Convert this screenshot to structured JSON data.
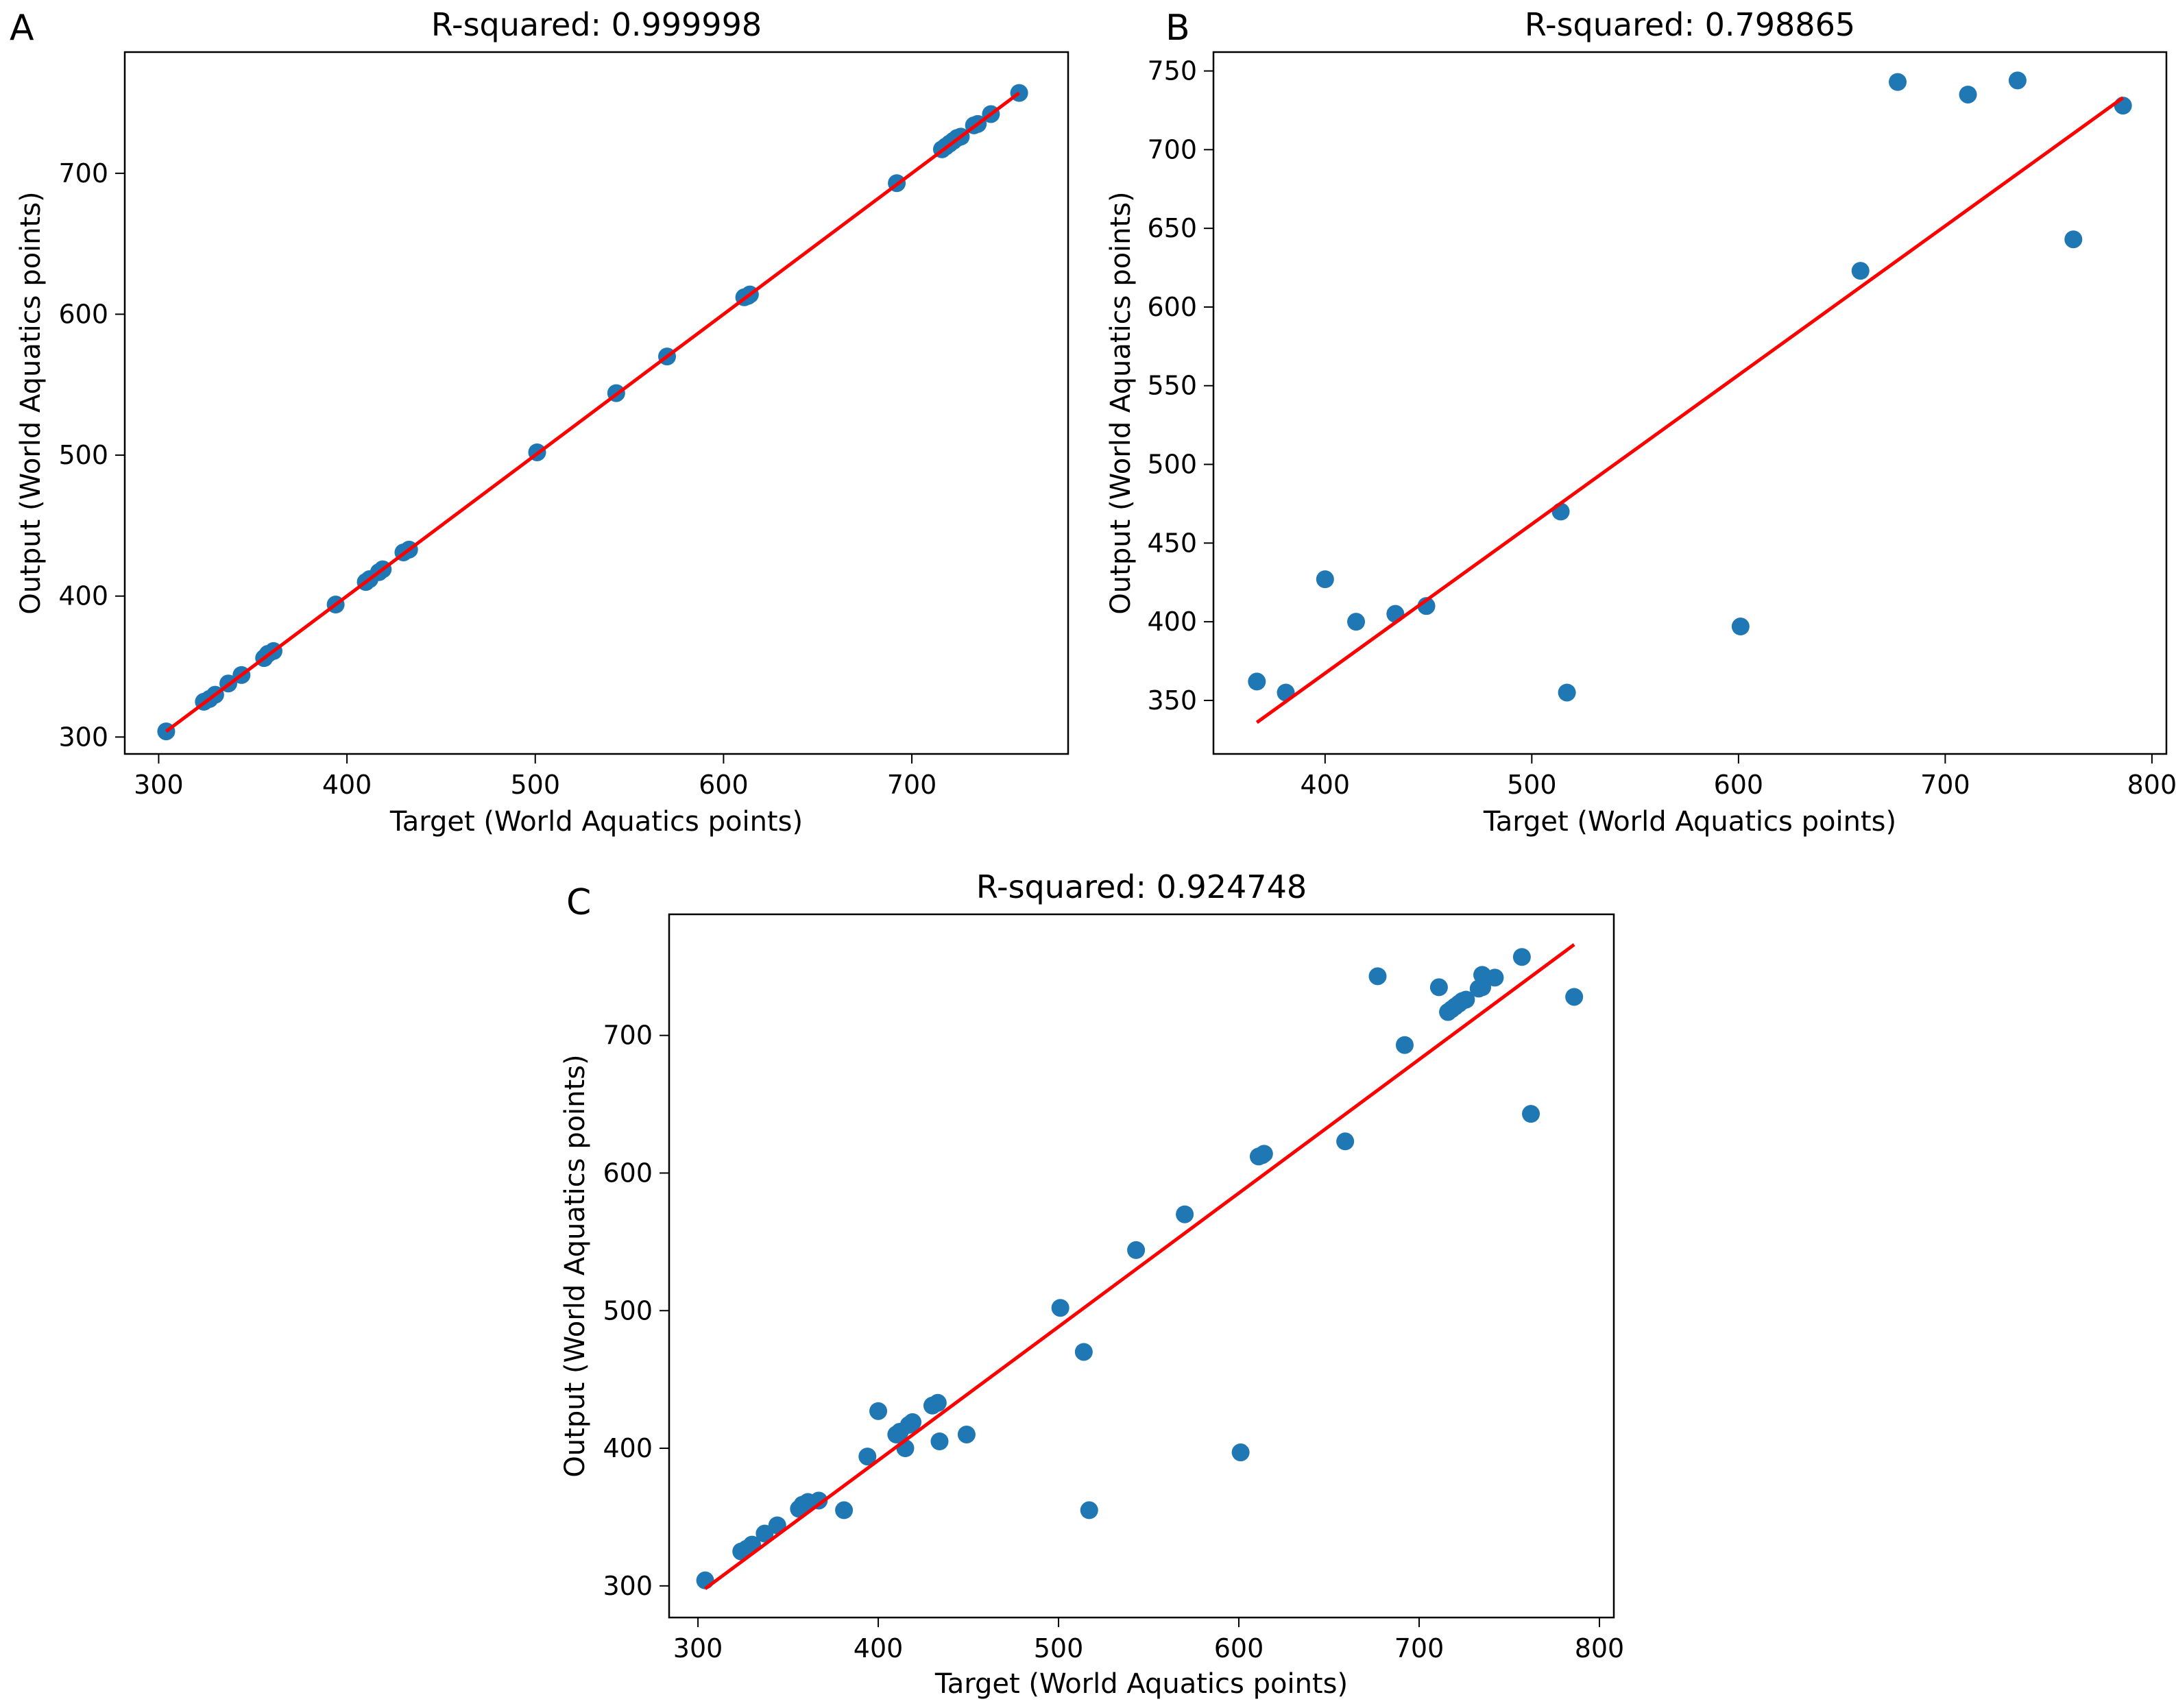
{
  "chart_data": [
    {
      "panel": "A",
      "type": "scatter",
      "title": "R-squared: 0.999998",
      "xlabel": "Target (World Aquatics points)",
      "ylabel": "Output (World Aquatics points)",
      "xlim": [
        282,
        783
      ],
      "ylim": [
        288,
        786
      ],
      "xticks": [
        300,
        400,
        500,
        600,
        700
      ],
      "yticks": [
        300,
        400,
        500,
        600,
        700
      ],
      "points": [
        [
          304,
          304
        ],
        [
          324,
          325
        ],
        [
          327,
          327
        ],
        [
          330,
          330
        ],
        [
          337,
          338
        ],
        [
          344,
          344
        ],
        [
          356,
          356
        ],
        [
          358,
          359
        ],
        [
          361,
          361
        ],
        [
          394,
          394
        ],
        [
          410,
          410
        ],
        [
          412,
          412
        ],
        [
          417,
          417
        ],
        [
          419,
          419
        ],
        [
          430,
          431
        ],
        [
          433,
          433
        ],
        [
          501,
          502
        ],
        [
          543,
          544
        ],
        [
          570,
          570
        ],
        [
          611,
          612
        ],
        [
          613,
          613
        ],
        [
          614,
          614
        ],
        [
          692,
          693
        ],
        [
          716,
          717
        ],
        [
          718,
          719
        ],
        [
          720,
          721
        ],
        [
          722,
          723
        ],
        [
          724,
          725
        ],
        [
          726,
          726
        ],
        [
          733,
          734
        ],
        [
          735,
          735
        ],
        [
          742,
          742
        ],
        [
          757,
          757
        ]
      ],
      "fit_line": [
        [
          304,
          304
        ],
        [
          757,
          757
        ]
      ],
      "marker_color": "#1f77b4",
      "line_color": "#ff0000"
    },
    {
      "panel": "B",
      "type": "scatter",
      "title": "R-squared: 0.798865",
      "xlabel": "Target (World Aquatics points)",
      "ylabel": "Output (World Aquatics points)",
      "xlim": [
        346,
        807
      ],
      "ylim": [
        316,
        762
      ],
      "xticks": [
        400,
        500,
        600,
        700,
        800
      ],
      "yticks": [
        350,
        400,
        450,
        500,
        550,
        600,
        650,
        700,
        750
      ],
      "points": [
        [
          367,
          362
        ],
        [
          381,
          355
        ],
        [
          400,
          427
        ],
        [
          415,
          400
        ],
        [
          434,
          405
        ],
        [
          449,
          410
        ],
        [
          514,
          470
        ],
        [
          517,
          355
        ],
        [
          601,
          397
        ],
        [
          659,
          623
        ],
        [
          677,
          743
        ],
        [
          711,
          735
        ],
        [
          735,
          744
        ],
        [
          762,
          643
        ],
        [
          786,
          728
        ]
      ],
      "fit_line": [
        [
          367,
          336
        ],
        [
          786,
          733
        ]
      ],
      "marker_color": "#1f77b4",
      "line_color": "#ff0000"
    },
    {
      "panel": "C",
      "type": "scatter",
      "title": "R-squared: 0.924748",
      "xlabel": "Target (World Aquatics points)",
      "ylabel": "Output (World Aquatics points)",
      "xlim": [
        284,
        808
      ],
      "ylim": [
        277,
        788
      ],
      "xticks": [
        300,
        400,
        500,
        600,
        700,
        800
      ],
      "yticks": [
        300,
        400,
        500,
        600,
        700
      ],
      "points": [
        [
          304,
          304
        ],
        [
          324,
          325
        ],
        [
          327,
          327
        ],
        [
          330,
          330
        ],
        [
          337,
          338
        ],
        [
          344,
          344
        ],
        [
          356,
          356
        ],
        [
          358,
          359
        ],
        [
          361,
          361
        ],
        [
          367,
          362
        ],
        [
          381,
          355
        ],
        [
          394,
          394
        ],
        [
          400,
          427
        ],
        [
          410,
          410
        ],
        [
          412,
          412
        ],
        [
          415,
          400
        ],
        [
          417,
          417
        ],
        [
          419,
          419
        ],
        [
          430,
          431
        ],
        [
          433,
          433
        ],
        [
          434,
          405
        ],
        [
          449,
          410
        ],
        [
          501,
          502
        ],
        [
          514,
          470
        ],
        [
          517,
          355
        ],
        [
          543,
          544
        ],
        [
          570,
          570
        ],
        [
          601,
          397
        ],
        [
          611,
          612
        ],
        [
          613,
          613
        ],
        [
          614,
          614
        ],
        [
          659,
          623
        ],
        [
          677,
          743
        ],
        [
          692,
          693
        ],
        [
          711,
          735
        ],
        [
          716,
          717
        ],
        [
          718,
          719
        ],
        [
          720,
          721
        ],
        [
          722,
          723
        ],
        [
          724,
          725
        ],
        [
          726,
          726
        ],
        [
          733,
          734
        ],
        [
          735,
          744
        ],
        [
          735,
          735
        ],
        [
          742,
          742
        ],
        [
          757,
          757
        ],
        [
          762,
          643
        ],
        [
          786,
          728
        ]
      ],
      "fit_line": [
        [
          304,
          298
        ],
        [
          786,
          766
        ]
      ],
      "marker_color": "#1f77b4",
      "line_color": "#ff0000"
    }
  ]
}
